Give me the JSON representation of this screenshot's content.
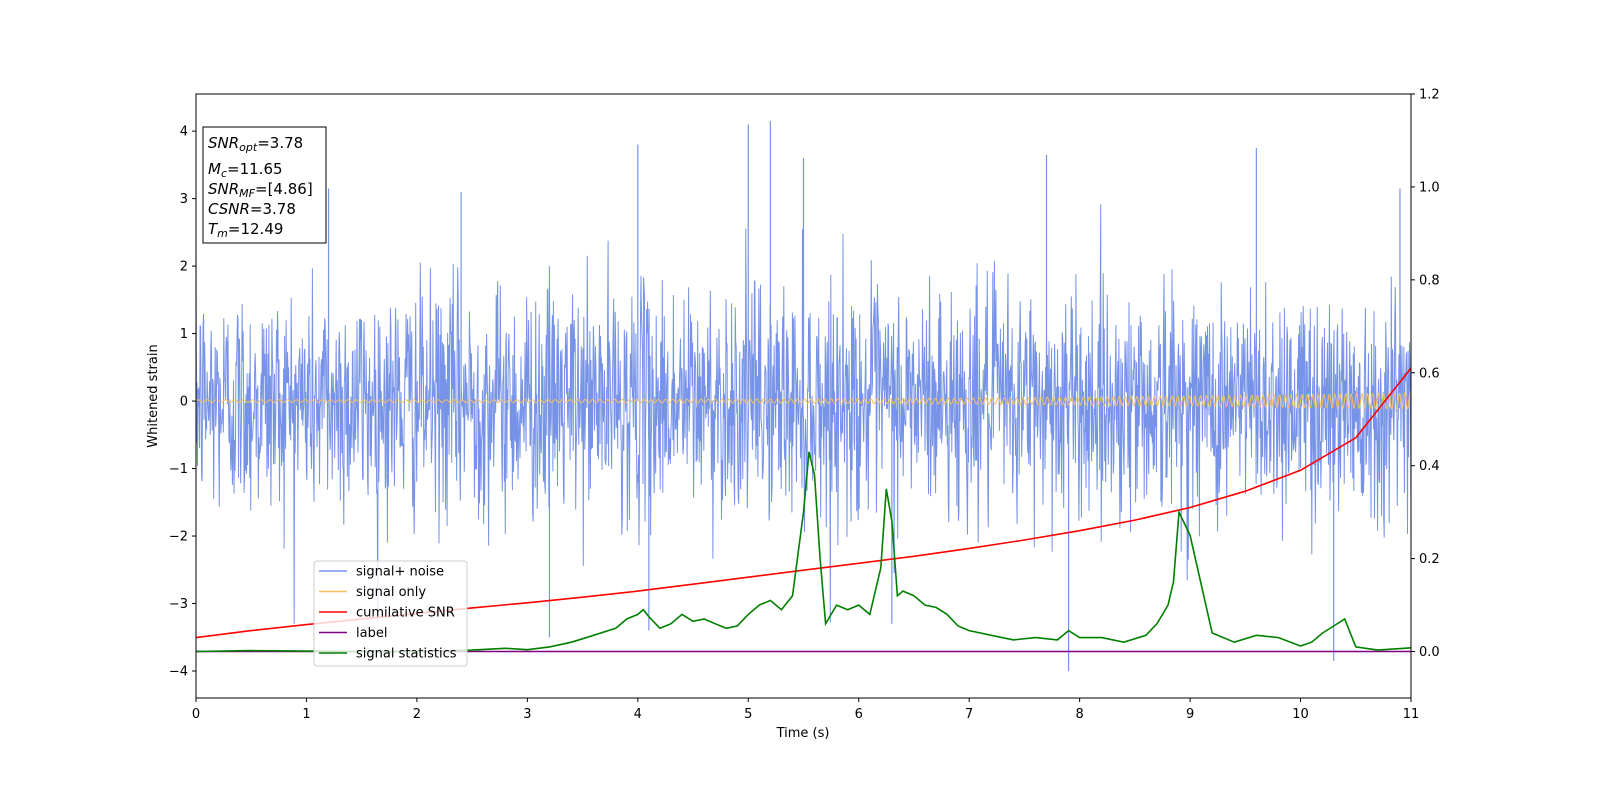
{
  "chart_data": {
    "type": "line",
    "xlabel": "Time (s)",
    "ylabel_left": "Whitened strain",
    "ylabel_right": "",
    "xlim": [
      0,
      11
    ],
    "ylim_left": [
      -4.4,
      4.55
    ],
    "ylim_right": [
      -0.1,
      1.2
    ],
    "x_ticks": [
      "0",
      "1",
      "2",
      "3",
      "4",
      "5",
      "6",
      "7",
      "8",
      "9",
      "10",
      "11"
    ],
    "y_left_ticks": [
      "−4",
      "−3",
      "−2",
      "−1",
      "0",
      "1",
      "2",
      "3",
      "4"
    ],
    "y_right_ticks": [
      "0.0",
      "0.2",
      "0.4",
      "0.6",
      "0.8",
      "1.0",
      "1.2"
    ],
    "grid": false,
    "legend_position": "lower-left",
    "info_box": {
      "snr_opt_base": "SNR",
      "snr_opt_sub": "opt",
      "snr_opt_value": "=3.78",
      "mc_base": "M",
      "mc_sub": "c",
      "mc_value": "=11.65",
      "snr_mf_base": "SNR",
      "snr_mf_sub": "MF",
      "snr_mf_value": "=[4.86]",
      "csnr_base": "CSNR",
      "csnr_value": "=3.78",
      "tm_base": "T",
      "tm_sub": "m",
      "tm_value": "=12.49"
    },
    "series": [
      {
        "name": "signal+ noise",
        "axis": "left",
        "color": "#7793e8",
        "description": "noisy whitened strain, dense, amplitude about ±1.5 with spikes to ±4",
        "envelope_sigma": 0.85,
        "spikes": [
          [
            1.2,
            3.15
          ],
          [
            2.4,
            3.1
          ],
          [
            3.2,
            -3.5
          ],
          [
            4.0,
            3.8
          ],
          [
            4.1,
            -3.4
          ],
          [
            5.0,
            4.1
          ],
          [
            5.2,
            4.15
          ],
          [
            5.5,
            3.6
          ],
          [
            6.3,
            -3.3
          ],
          [
            7.7,
            3.65
          ],
          [
            7.9,
            -4.0
          ],
          [
            9.6,
            3.75
          ],
          [
            10.3,
            -3.85
          ],
          [
            10.9,
            3.15
          ]
        ]
      },
      {
        "name": "signal only",
        "axis": "left",
        "color": "#f5bf63",
        "description": "chirp with amplitude growing from ~0.02 to ~0.12",
        "amplitude_start": 0.02,
        "amplitude_end": 0.12
      },
      {
        "name": "cumilative SNR",
        "axis": "right",
        "color": "#ff0000",
        "x": [
          0,
          0.5,
          1,
          1.5,
          2,
          2.5,
          3,
          3.5,
          4,
          4.5,
          5,
          5.5,
          6,
          6.5,
          7,
          7.5,
          8,
          8.5,
          9,
          9.5,
          10,
          10.5,
          11
        ],
        "y": [
          0.03,
          0.045,
          0.058,
          0.07,
          0.082,
          0.094,
          0.105,
          0.117,
          0.13,
          0.145,
          0.16,
          0.175,
          0.19,
          0.205,
          0.222,
          0.24,
          0.26,
          0.283,
          0.31,
          0.345,
          0.39,
          0.46,
          0.61
        ]
      },
      {
        "name": "label",
        "axis": "right",
        "color": "#800080",
        "x": [
          0,
          11
        ],
        "y": [
          0.0,
          0.0
        ]
      },
      {
        "name": "signal statistics",
        "axis": "right",
        "color": "#008000",
        "x": [
          0,
          0.5,
          1.0,
          1.5,
          2.0,
          2.5,
          2.8,
          3.0,
          3.2,
          3.4,
          3.6,
          3.8,
          3.9,
          4.0,
          4.05,
          4.1,
          4.2,
          4.3,
          4.4,
          4.5,
          4.6,
          4.7,
          4.8,
          4.9,
          5.0,
          5.1,
          5.2,
          5.3,
          5.4,
          5.5,
          5.55,
          5.6,
          5.65,
          5.7,
          5.8,
          5.9,
          6.0,
          6.1,
          6.2,
          6.25,
          6.3,
          6.35,
          6.4,
          6.5,
          6.6,
          6.7,
          6.8,
          6.9,
          7.0,
          7.2,
          7.4,
          7.6,
          7.8,
          7.9,
          8.0,
          8.2,
          8.4,
          8.6,
          8.7,
          8.8,
          8.85,
          8.9,
          9.0,
          9.2,
          9.4,
          9.6,
          9.8,
          10.0,
          10.1,
          10.2,
          10.3,
          10.4,
          10.5,
          10.7,
          11.0
        ],
        "y": [
          0.0,
          0.002,
          0.001,
          0.0,
          0.0,
          0.003,
          0.007,
          0.004,
          0.01,
          0.02,
          0.035,
          0.05,
          0.07,
          0.08,
          0.09,
          0.075,
          0.05,
          0.06,
          0.08,
          0.065,
          0.07,
          0.06,
          0.05,
          0.055,
          0.08,
          0.1,
          0.11,
          0.09,
          0.12,
          0.3,
          0.43,
          0.38,
          0.2,
          0.06,
          0.1,
          0.09,
          0.1,
          0.08,
          0.18,
          0.35,
          0.28,
          0.12,
          0.13,
          0.12,
          0.1,
          0.095,
          0.08,
          0.055,
          0.045,
          0.035,
          0.025,
          0.03,
          0.025,
          0.045,
          0.03,
          0.03,
          0.02,
          0.035,
          0.06,
          0.1,
          0.15,
          0.3,
          0.25,
          0.04,
          0.02,
          0.035,
          0.03,
          0.012,
          0.02,
          0.04,
          0.055,
          0.07,
          0.01,
          0.003,
          0.008
        ]
      }
    ]
  }
}
